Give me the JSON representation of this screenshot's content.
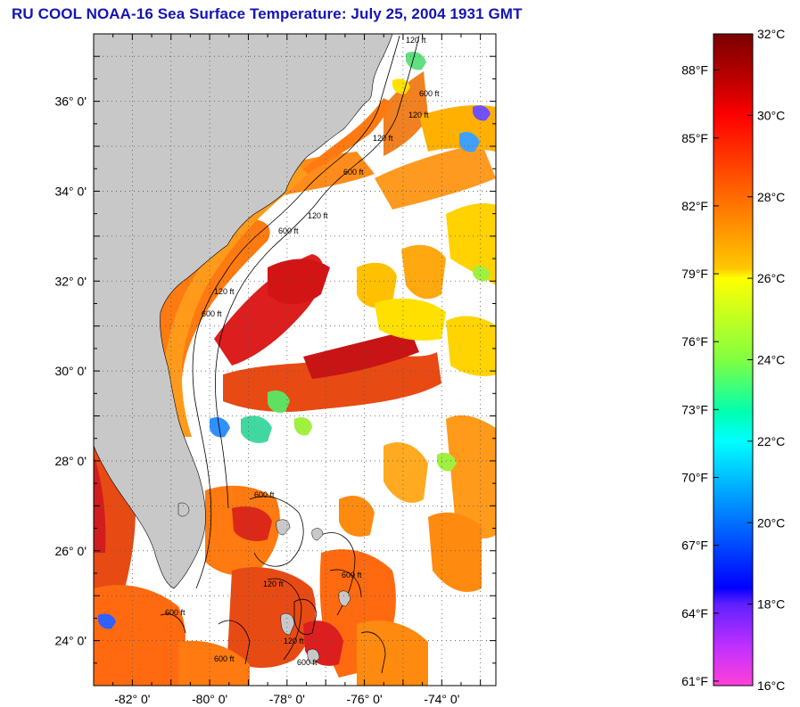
{
  "header": {
    "title": "RU COOL  NOAA-16  Sea Surface Temperature:  July 25, 2004 1931 GMT"
  },
  "map": {
    "lat_labels": [
      "36° 0'",
      "34° 0'",
      "32° 0'",
      "30° 0'",
      "28° 0'",
      "26° 0'",
      "24° 0'"
    ],
    "lon_labels": [
      "-82° 0'",
      "-80° 0'",
      "-78° 0'",
      "-76° 0'",
      "-74° 0'"
    ],
    "lat_range": [
      23,
      37.5
    ],
    "lon_range": [
      -83,
      -72.6
    ],
    "bathymetry_labels": [
      "120 ft",
      "600 ft"
    ]
  },
  "colorbar": {
    "celsius_labels": [
      "32°C",
      "30°C",
      "28°C",
      "26°C",
      "24°C",
      "22°C",
      "20°C",
      "18°C",
      "16°C"
    ],
    "fahrenheit_labels": [
      "88°F",
      "85°F",
      "82°F",
      "79°F",
      "76°F",
      "73°F",
      "70°F",
      "67°F",
      "64°F",
      "61°F"
    ],
    "range_c": [
      16,
      32
    ]
  },
  "colors": {
    "land": "#c8c8c8",
    "title": "#1414b4",
    "warm": "#e8381a",
    "hot": "#b40000",
    "cloud": "#ffffff"
  }
}
